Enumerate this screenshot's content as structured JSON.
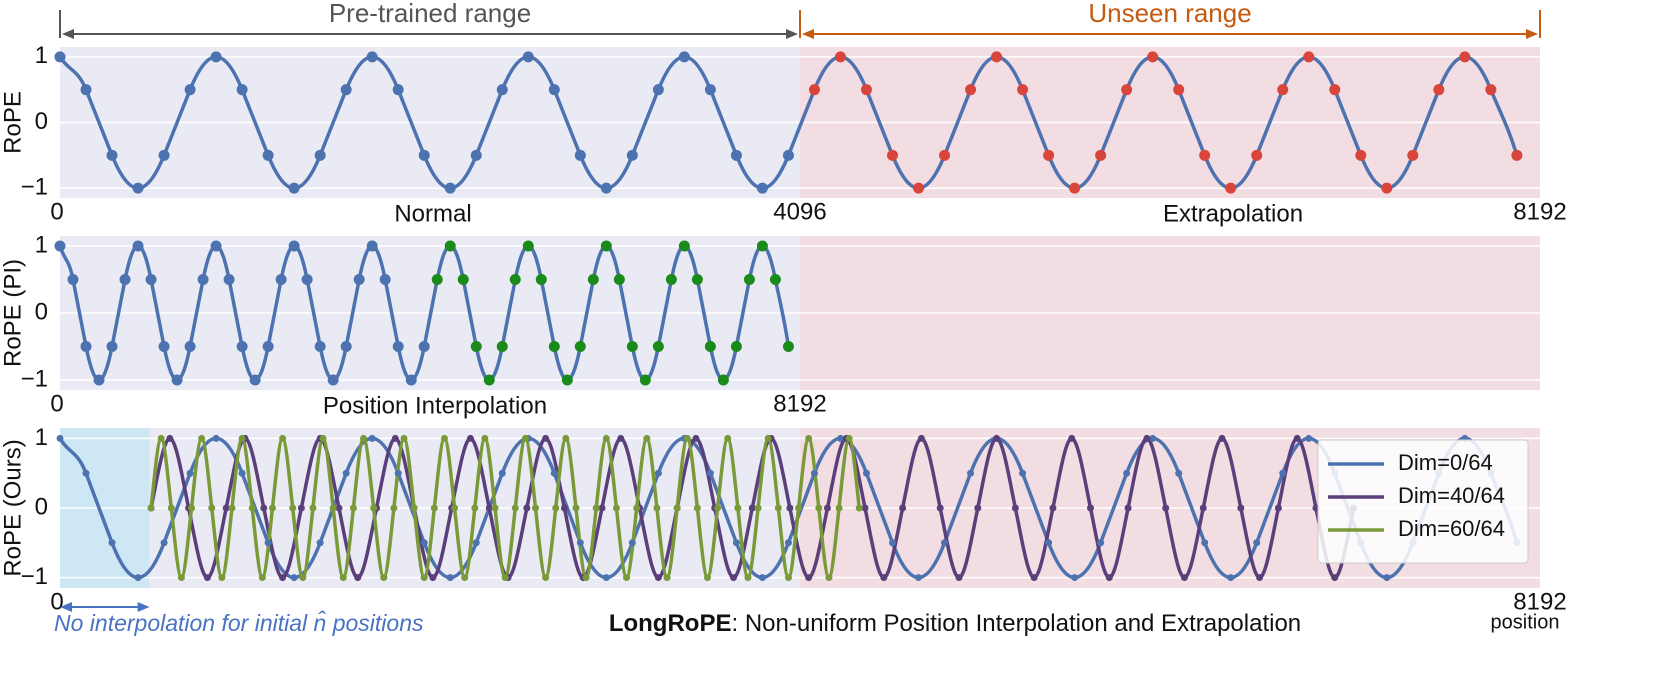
{
  "chart_data": [
    {
      "type": "line",
      "ylabel": "RoPE",
      "xlim": [
        0,
        8192
      ],
      "ylim": [
        -1.15,
        1.15
      ],
      "xticks": [
        0,
        4096,
        8192
      ],
      "yticks": [
        1,
        0,
        {
          "value": -1,
          "label": "−1"
        }
      ],
      "grid": true,
      "regions": [
        {
          "from": 0,
          "to": 4096,
          "color": "#eaeaf4"
        },
        {
          "from": 4096,
          "to": 8192,
          "color": "#f2dde2"
        }
      ],
      "ranges": [
        {
          "text": "Pre-trained range",
          "from": 0,
          "to": 4096,
          "color": "#555555"
        },
        {
          "text": "Unseen range",
          "from": 4096,
          "to": 8192,
          "color": "#c55a11"
        }
      ],
      "subtitles": [
        "Normal",
        "Extrapolation"
      ],
      "series": [
        {
          "color": "#4c72b0",
          "marker_color": "#4c72b0",
          "x": [
            0,
            144,
            288,
            432,
            576,
            720,
            864,
            1008,
            1152,
            1296,
            1440,
            1584,
            1728,
            1872,
            2016,
            2160,
            2304,
            2448,
            2592,
            2736,
            2880,
            3024,
            3168,
            3312,
            3456,
            3600,
            3744,
            3888,
            4032
          ],
          "values": [
            1,
            0.5,
            -0.5,
            -1,
            -0.5,
            0.5,
            1,
            0.5,
            -0.5,
            -1,
            -0.5,
            0.5,
            1,
            0.5,
            -0.5,
            -1,
            -0.5,
            0.5,
            1,
            0.5,
            -0.5,
            -1,
            -0.5,
            0.5,
            1,
            0.5,
            -0.5,
            -1,
            -0.5
          ]
        },
        {
          "color": "#4c72b0",
          "marker_color": "#d9453b",
          "x": [
            4176,
            4320,
            4464,
            4608,
            4752,
            4896,
            5040,
            5184,
            5328,
            5472,
            5616,
            5760,
            5904,
            6048,
            6192,
            6336,
            6480,
            6624,
            6768,
            6912,
            7056,
            7200,
            7344,
            7488,
            7632,
            7776,
            7920,
            8064
          ],
          "values": [
            0.5,
            1,
            0.5,
            -0.5,
            -1,
            -0.5,
            0.5,
            1,
            0.5,
            -0.5,
            -1,
            -0.5,
            0.5,
            1,
            0.5,
            -0.5,
            -1,
            -0.5,
            0.5,
            1,
            0.5,
            -0.5,
            -1,
            -0.5,
            0.5,
            1,
            0.5,
            -0.5
          ]
        }
      ]
    },
    {
      "type": "line",
      "ylabel": "RoPE (PI)",
      "xlim": [
        0,
        16384
      ],
      "ylim": [
        -1.15,
        1.15
      ],
      "xticks": [
        0,
        8192
      ],
      "yticks": [
        1,
        0,
        {
          "value": -1,
          "label": "−1"
        }
      ],
      "grid": true,
      "regions": [
        {
          "from": 0,
          "to": 8192,
          "color": "#eaeaf4"
        },
        {
          "from": 8192,
          "to": 16384,
          "color": "#f2dde2"
        }
      ],
      "subtitles": [
        "Position Interpolation"
      ],
      "series": [
        {
          "color": "#4c72b0",
          "marker_color": "#4c72b0",
          "x": [
            0,
            144,
            288,
            432,
            576,
            720,
            864,
            1008,
            1152,
            1296,
            1440,
            1584,
            1728,
            1872,
            2016,
            2160,
            2304,
            2448,
            2592,
            2736,
            2880,
            3024,
            3168,
            3312,
            3456,
            3600,
            3744,
            3888,
            4032
          ],
          "values": [
            1,
            0.5,
            -0.5,
            -1,
            -0.5,
            0.5,
            1,
            0.5,
            -0.5,
            -1,
            -0.5,
            0.5,
            1,
            0.5,
            -0.5,
            -1,
            -0.5,
            0.5,
            1,
            0.5,
            -0.5,
            -1,
            -0.5,
            0.5,
            1,
            0.5,
            -0.5,
            -1,
            -0.5
          ]
        },
        {
          "color": "#4c72b0",
          "marker_color": "#1a8a1a",
          "x": [
            4176,
            4320,
            4464,
            4608,
            4752,
            4896,
            5040,
            5184,
            5328,
            5472,
            5616,
            5760,
            5904,
            6048,
            6192,
            6336,
            6480,
            6624,
            6768,
            6912,
            7056,
            7200,
            7344,
            7488,
            7632,
            7776,
            7920,
            8064
          ],
          "values": [
            0.5,
            1,
            0.5,
            -0.5,
            -1,
            -0.5,
            0.5,
            1,
            0.5,
            -0.5,
            -1,
            -0.5,
            0.5,
            1,
            0.5,
            -0.5,
            -1,
            -0.5,
            0.5,
            1,
            0.5,
            -0.5,
            -1,
            -0.5,
            0.5,
            1,
            0.5,
            -0.5
          ]
        }
      ]
    },
    {
      "type": "line",
      "ylabel": "RoPE (Ours)",
      "xlabel": "position",
      "xlim": [
        0,
        8192
      ],
      "ylim": [
        -1.15,
        1.15
      ],
      "xticks": [
        0,
        8192
      ],
      "yticks": [
        1,
        0,
        {
          "value": -1,
          "label": "−1"
        }
      ],
      "grid": true,
      "legend": "upper right",
      "regions": [
        {
          "from": 0,
          "to": 4096,
          "color": "#eaeaf4"
        },
        {
          "from": 4096,
          "to": 8192,
          "color": "#f2dde2"
        },
        {
          "from": 0,
          "to": 496,
          "color": "#c9e6f3"
        }
      ],
      "note": {
        "text": "No interpolation for initial n̂ positions",
        "from": 0,
        "to": 496
      },
      "caption": {
        "bold": "LongRoPE",
        "text": ": Non-uniform Position Interpolation and Extrapolation"
      },
      "series": [
        {
          "name": "Dim=0/64",
          "color": "#4c72b0",
          "marker_color": "#4c72b0",
          "x": [
            0,
            144,
            288,
            432,
            576,
            720,
            864,
            1008,
            1152,
            1296,
            1440,
            1584,
            1728,
            1872,
            2016,
            2160,
            2304,
            2448,
            2592,
            2736,
            2880,
            3024,
            3168,
            3312,
            3456,
            3600,
            3744,
            3888,
            4032,
            4176,
            4320,
            4464,
            4608,
            4752,
            4896,
            5040,
            5184,
            5328,
            5472,
            5616,
            5760,
            5904,
            6048,
            6192,
            6336,
            6480,
            6624,
            6768,
            6912,
            7056,
            7200,
            7344,
            7488,
            7632,
            7776,
            7920,
            8064
          ],
          "values": [
            1,
            0.5,
            -0.5,
            -1,
            -0.5,
            0.5,
            1,
            0.5,
            -0.5,
            -1,
            -0.5,
            0.5,
            1,
            0.5,
            -0.5,
            -1,
            -0.5,
            0.5,
            1,
            0.5,
            -0.5,
            -1,
            -0.5,
            0.5,
            1,
            0.5,
            -0.5,
            -1,
            -0.5,
            0.5,
            1,
            0.5,
            -0.5,
            -1,
            -0.5,
            0.5,
            1,
            0.5,
            -0.5,
            -1,
            -0.5,
            0.5,
            1,
            0.5,
            -0.5,
            -1,
            -0.5,
            0.5,
            1,
            0.5,
            -0.5,
            -1,
            -0.5,
            0.5,
            1,
            0.5,
            -0.5
          ]
        },
        {
          "name": "Dim=40/64",
          "color": "#5b3f7a",
          "marker_color": "#5b3f7a",
          "x": [
            504,
            608,
            712,
            816,
            920,
            1024,
            1128,
            1232,
            1336,
            1440,
            1544,
            1648,
            1752,
            1856,
            1960,
            2064,
            2168,
            2272,
            2376,
            2480,
            2584,
            2688,
            2792,
            2896,
            3000,
            3104,
            3208,
            3312,
            3416,
            3520,
            3624,
            3728,
            3832,
            3936,
            4040,
            4144,
            4248,
            4352,
            4456,
            4560,
            4664,
            4768,
            4872,
            4976,
            5080,
            5184,
            5288,
            5392,
            5496,
            5600,
            5704,
            5808,
            5912,
            6016,
            6120,
            6224,
            6328,
            6432,
            6536,
            6640,
            6744,
            6848,
            6952,
            7056,
            7160
          ],
          "values": [
            0,
            1,
            0,
            -1,
            0,
            1,
            0,
            -1,
            0,
            1,
            0,
            -1,
            0,
            1,
            0,
            -1,
            0,
            1,
            0,
            -1,
            0,
            1,
            0,
            -1,
            0,
            1,
            0,
            -1,
            0,
            1,
            0,
            -1,
            0,
            1,
            0,
            -1,
            0,
            1,
            0,
            -1,
            0,
            1,
            0,
            -1,
            0,
            1,
            0,
            -1,
            0,
            1,
            0,
            -1,
            0,
            1,
            0,
            -1,
            0,
            1,
            0,
            -1,
            0,
            1,
            0,
            -1,
            0
          ]
        },
        {
          "name": "Dim=60/64",
          "color": "#7a9a3a",
          "marker_color": "#7a9a3a",
          "x": [
            504,
            560,
            616,
            672,
            728,
            784,
            840,
            896,
            952,
            1008,
            1064,
            1120,
            1176,
            1232,
            1288,
            1344,
            1400,
            1456,
            1512,
            1568,
            1624,
            1680,
            1736,
            1792,
            1848,
            1904,
            1960,
            2016,
            2072,
            2128,
            2184,
            2240,
            2296,
            2352,
            2408,
            2464,
            2520,
            2576,
            2632,
            2688,
            2744,
            2800,
            2856,
            2912,
            2968,
            3024,
            3080,
            3136,
            3192,
            3248,
            3304,
            3360,
            3416,
            3472,
            3528,
            3584,
            3640,
            3696,
            3752,
            3808,
            3864,
            3920,
            3976,
            4032,
            4088,
            4144,
            4200,
            4256,
            4312,
            4368,
            4424
          ],
          "values": [
            0,
            1,
            0,
            -1,
            0,
            1,
            0,
            -1,
            0,
            1,
            0,
            -1,
            0,
            1,
            0,
            -1,
            0,
            1,
            0,
            -1,
            0,
            1,
            0,
            -1,
            0,
            1,
            0,
            -1,
            0,
            1,
            0,
            -1,
            0,
            1,
            0,
            -1,
            0,
            1,
            0,
            -1,
            0,
            1,
            0,
            -1,
            0,
            1,
            0,
            -1,
            0,
            1,
            0,
            -1,
            0,
            1,
            0,
            -1,
            0,
            1,
            0,
            -1,
            0,
            1,
            0,
            -1,
            0,
            1,
            0,
            -1,
            0,
            1,
            0
          ]
        }
      ]
    }
  ]
}
